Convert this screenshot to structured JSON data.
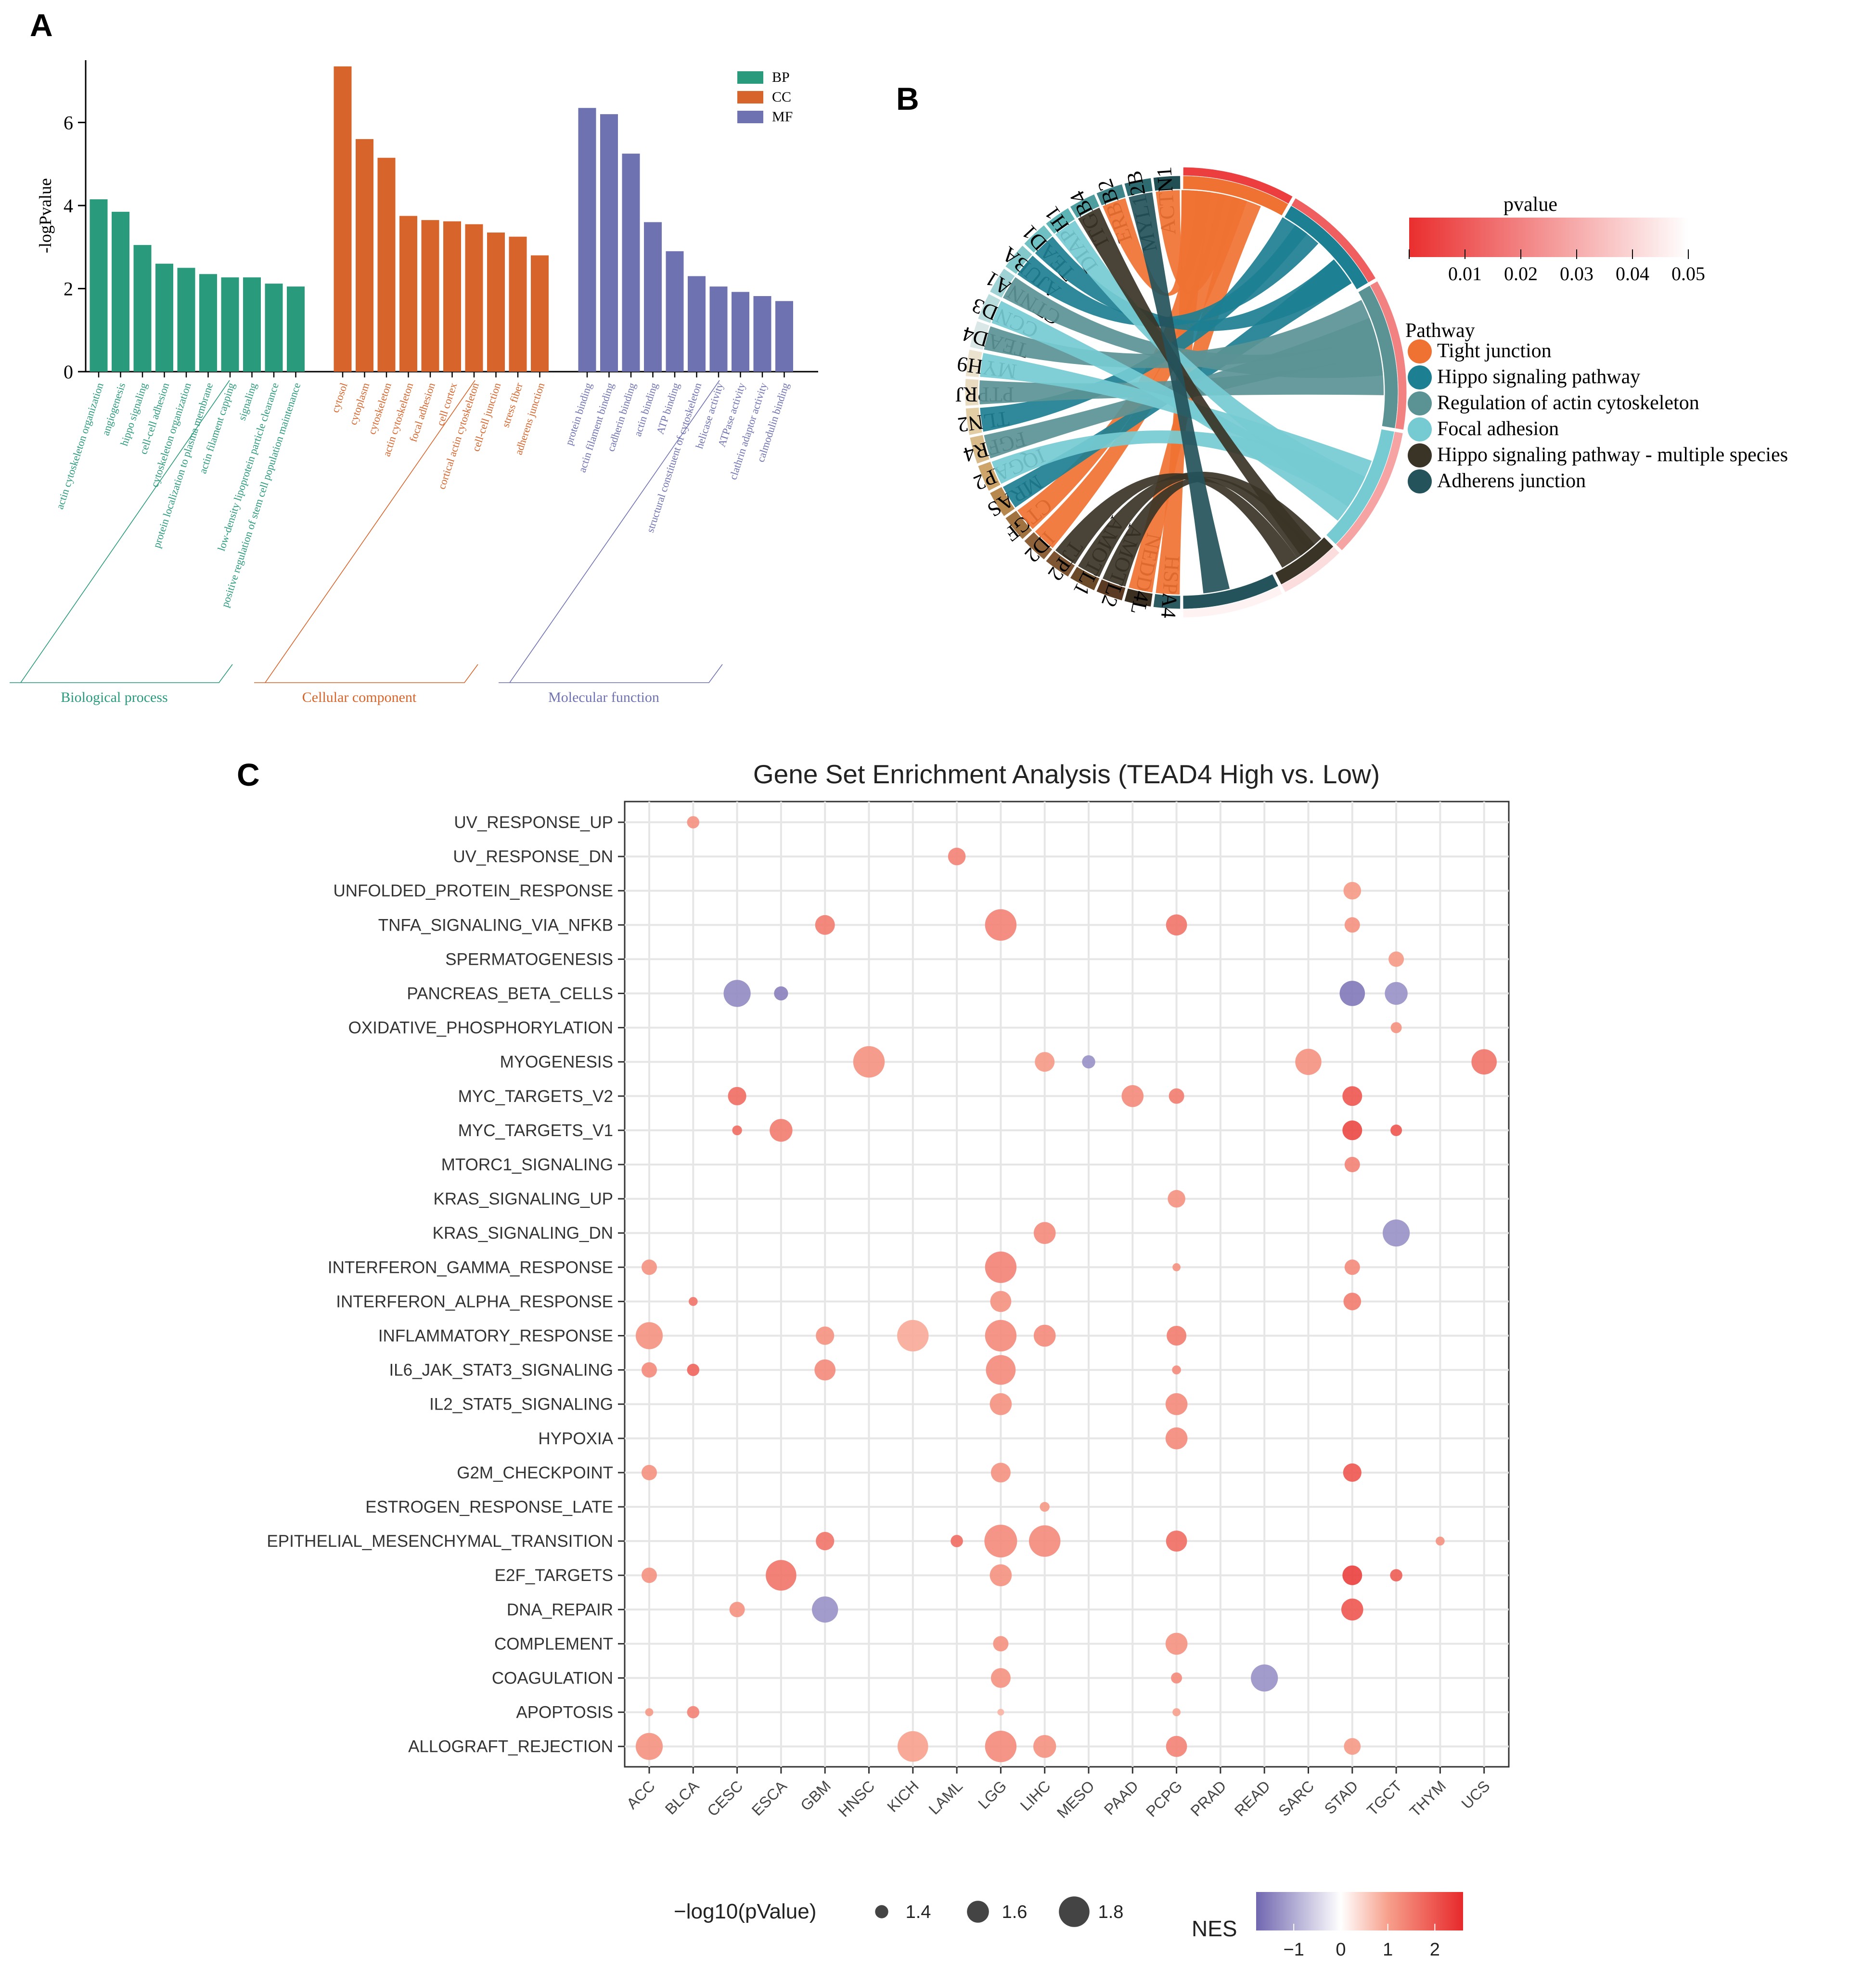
{
  "panels": {
    "a": {
      "label": "A"
    },
    "b": {
      "label": "B"
    },
    "c": {
      "label": "C"
    }
  },
  "chart_data": [
    {
      "type": "bar",
      "ylabel": "-logPvalue",
      "ylim": [
        0,
        7.5
      ],
      "yticks": [
        0,
        2,
        4,
        6
      ],
      "legend": {
        "placement": "top-right",
        "entries": [
          "BP",
          "CC",
          "MF"
        ]
      },
      "colors": {
        "BP": "#2a9a7c",
        "CC": "#d7652b",
        "MF": "#6f72b0"
      },
      "groups": [
        {
          "key": "BP",
          "name": "Biological process",
          "categories": [
            "actin cytoskeleton organization",
            "angiogenesis",
            "hippo signaling",
            "cell-cell adhesion",
            "cytoskeleton organization",
            "protein localization to plasma membrane",
            "actin filament capping",
            "signaling",
            "low-density lipoprotein particle clearance",
            "positive regulation of stem cell population maintenance"
          ],
          "values": [
            4.15,
            3.85,
            3.05,
            2.6,
            2.5,
            2.35,
            2.27,
            2.27,
            2.12,
            2.05
          ]
        },
        {
          "key": "CC",
          "name": "Cellular component",
          "categories": [
            "cytosol",
            "cytoplasm",
            "cytoskeleton",
            "actin cytoskeleton",
            "focal adhesion",
            "cell cortex",
            "cortical actin cytoskeleton",
            "cell-cell junction",
            "stress fiber",
            "adherens junction"
          ],
          "values": [
            7.35,
            5.6,
            5.15,
            3.75,
            3.65,
            3.62,
            3.55,
            3.35,
            3.25,
            2.8
          ]
        },
        {
          "key": "MF",
          "name": "Molecular function",
          "categories": [
            "protein binding",
            "actin filament binding",
            "cadherin binding",
            "actin binding",
            "ATP binding",
            "structural constituent of cytoskeleton",
            "helicase activity",
            "ATPase activity",
            "clathrin adaptor activity",
            "calmodulin binding"
          ],
          "values": [
            6.35,
            6.2,
            5.25,
            3.6,
            2.9,
            2.3,
            2.05,
            1.92,
            1.82,
            1.7
          ]
        }
      ]
    },
    {
      "type": "chord",
      "genes": [
        "ACTN1",
        "MYL12B",
        "ERBB2",
        "ITGB4",
        "DIAPH1",
        "TEAD1",
        "AJUBA",
        "CTNNA1",
        "CCND3",
        "TEAD4",
        "MYH9",
        "PTPRJ",
        "TLN2",
        "FGFR4",
        "IQGAP2",
        "MRAS",
        "CTGF",
        "ID2",
        "TJP2",
        "AMOTL1",
        "AMOTL2",
        "NEDD4L",
        "HSPA4"
      ],
      "pathways": [
        {
          "name": "Tight junction",
          "color": "#f07232",
          "pvalue": 0.004
        },
        {
          "name": "Hippo signaling pathway",
          "color": "#1d7f92",
          "pvalue": 0.012
        },
        {
          "name": "Regulation of actin cytoskeleton",
          "color": "#5b9395",
          "pvalue": 0.02
        },
        {
          "name": "Focal adhesion",
          "color": "#76cbd3",
          "pvalue": 0.028
        },
        {
          "name": "Hippo signaling pathway - multiple species",
          "color": "#3a3426",
          "pvalue": 0.042
        },
        {
          "name": "Adherens junction",
          "color": "#24535b",
          "pvalue": 0.047
        }
      ],
      "legend_pathway_title": "Pathway",
      "legend_pvalue_title": "pvalue",
      "pvalue_ticks": [
        "0.01",
        "0.02",
        "0.03",
        "0.04",
        "0.05"
      ],
      "pvalue_range": [
        0,
        0.05
      ]
    },
    {
      "type": "scatter",
      "title": "Gene Set Enrichment Analysis (TEAD4 High vs. Low)",
      "x_categories": [
        "ACC",
        "BLCA",
        "CESC",
        "ESCA",
        "GBM",
        "HNSC",
        "KICH",
        "LAML",
        "LGG",
        "LIHC",
        "MESO",
        "PAAD",
        "PCPG",
        "PRAD",
        "READ",
        "SARC",
        "STAD",
        "TGCT",
        "THYM",
        "UCS"
      ],
      "y_categories": [
        "UV_RESPONSE_UP",
        "UV_RESPONSE_DN",
        "UNFOLDED_PROTEIN_RESPONSE",
        "TNFA_SIGNALING_VIA_NFKB",
        "SPERMATOGENESIS",
        "PANCREAS_BETA_CELLS",
        "OXIDATIVE_PHOSPHORYLATION",
        "MYOGENESIS",
        "MYC_TARGETS_V2",
        "MYC_TARGETS_V1",
        "MTORC1_SIGNALING",
        "KRAS_SIGNALING_UP",
        "KRAS_SIGNALING_DN",
        "INTERFERON_GAMMA_RESPONSE",
        "INTERFERON_ALPHA_RESPONSE",
        "INFLAMMATORY_RESPONSE",
        "IL6_JAK_STAT3_SIGNALING",
        "IL2_STAT5_SIGNALING",
        "HYPOXIA",
        "G2M_CHECKPOINT",
        "ESTROGEN_RESPONSE_LATE",
        "EPITHELIAL_MESENCHYMAL_TRANSITION",
        "E2F_TARGETS",
        "DNA_REPAIR",
        "COMPLEMENT",
        "COAGULATION",
        "APOPTOSIS",
        "ALLOGRAFT_REJECTION"
      ],
      "size_legend_title": "−log10(pValue)",
      "size_legend_values": [
        1.4,
        1.6,
        1.8
      ],
      "color_legend_title": "NES",
      "color_legend_ticks": [
        "−1",
        "0",
        "1",
        "2"
      ],
      "nes_range": [
        -1.8,
        2.6
      ],
      "points": [
        {
          "x": "BLCA",
          "y": "UV_RESPONSE_UP",
          "nes": 1.2,
          "logp": 1.38
        },
        {
          "x": "LAML",
          "y": "UV_RESPONSE_DN",
          "nes": 1.4,
          "logp": 1.5
        },
        {
          "x": "STAD",
          "y": "UNFOLDED_PROTEIN_RESPONSE",
          "nes": 1.1,
          "logp": 1.5
        },
        {
          "x": "GBM",
          "y": "TNFA_SIGNALING_VIA_NFKB",
          "nes": 1.5,
          "logp": 1.55
        },
        {
          "x": "LGG",
          "y": "TNFA_SIGNALING_VIA_NFKB",
          "nes": 1.4,
          "logp": 1.82
        },
        {
          "x": "PCPG",
          "y": "TNFA_SIGNALING_VIA_NFKB",
          "nes": 1.6,
          "logp": 1.58
        },
        {
          "x": "STAD",
          "y": "TNFA_SIGNALING_VIA_NFKB",
          "nes": 1.2,
          "logp": 1.45
        },
        {
          "x": "TGCT",
          "y": "SPERMATOGENESIS",
          "nes": 1.1,
          "logp": 1.45
        },
        {
          "x": "CESC",
          "y": "PANCREAS_BETA_CELLS",
          "nes": -1.4,
          "logp": 1.72
        },
        {
          "x": "ESCA",
          "y": "PANCREAS_BETA_CELLS",
          "nes": -1.5,
          "logp": 1.42
        },
        {
          "x": "STAD",
          "y": "PANCREAS_BETA_CELLS",
          "nes": -1.6,
          "logp": 1.68
        },
        {
          "x": "TGCT",
          "y": "PANCREAS_BETA_CELLS",
          "nes": -1.3,
          "logp": 1.62
        },
        {
          "x": "TGCT",
          "y": "OXIDATIVE_PHOSPHORYLATION",
          "nes": 1.2,
          "logp": 1.35
        },
        {
          "x": "HNSC",
          "y": "MYOGENESIS",
          "nes": 1.2,
          "logp": 1.82
        },
        {
          "x": "LIHC",
          "y": "MYOGENESIS",
          "nes": 1.1,
          "logp": 1.55
        },
        {
          "x": "MESO",
          "y": "MYOGENESIS",
          "nes": -1.3,
          "logp": 1.4
        },
        {
          "x": "SARC",
          "y": "MYOGENESIS",
          "nes": 1.2,
          "logp": 1.7
        },
        {
          "x": "UCS",
          "y": "MYOGENESIS",
          "nes": 1.6,
          "logp": 1.68
        },
        {
          "x": "CESC",
          "y": "MYC_TARGETS_V2",
          "nes": 1.7,
          "logp": 1.52
        },
        {
          "x": "PAAD",
          "y": "MYC_TARGETS_V2",
          "nes": 1.3,
          "logp": 1.6
        },
        {
          "x": "PCPG",
          "y": "MYC_TARGETS_V2",
          "nes": 1.5,
          "logp": 1.45
        },
        {
          "x": "STAD",
          "y": "MYC_TARGETS_V2",
          "nes": 2.0,
          "logp": 1.55
        },
        {
          "x": "CESC",
          "y": "MYC_TARGETS_V1",
          "nes": 1.7,
          "logp": 1.32
        },
        {
          "x": "ESCA",
          "y": "MYC_TARGETS_V1",
          "nes": 1.5,
          "logp": 1.62
        },
        {
          "x": "STAD",
          "y": "MYC_TARGETS_V1",
          "nes": 2.2,
          "logp": 1.55
        },
        {
          "x": "TGCT",
          "y": "MYC_TARGETS_V1",
          "nes": 2.0,
          "logp": 1.36
        },
        {
          "x": "STAD",
          "y": "MTORC1_SIGNALING",
          "nes": 1.4,
          "logp": 1.45
        },
        {
          "x": "PCPG",
          "y": "KRAS_SIGNALING_UP",
          "nes": 1.2,
          "logp": 1.5
        },
        {
          "x": "LIHC",
          "y": "KRAS_SIGNALING_DN",
          "nes": 1.3,
          "logp": 1.6
        },
        {
          "x": "TGCT",
          "y": "KRAS_SIGNALING_DN",
          "nes": -1.3,
          "logp": 1.72
        },
        {
          "x": "ACC",
          "y": "INTERFERON_GAMMA_RESPONSE",
          "nes": 1.2,
          "logp": 1.45
        },
        {
          "x": "LGG",
          "y": "INTERFERON_GAMMA_RESPONSE",
          "nes": 1.4,
          "logp": 1.82
        },
        {
          "x": "PCPG",
          "y": "INTERFERON_GAMMA_RESPONSE",
          "nes": 1.2,
          "logp": 1.28
        },
        {
          "x": "STAD",
          "y": "INTERFERON_GAMMA_RESPONSE",
          "nes": 1.3,
          "logp": 1.45
        },
        {
          "x": "BLCA",
          "y": "INTERFERON_ALPHA_RESPONSE",
          "nes": 1.6,
          "logp": 1.3
        },
        {
          "x": "LGG",
          "y": "INTERFERON_ALPHA_RESPONSE",
          "nes": 1.2,
          "logp": 1.58
        },
        {
          "x": "STAD",
          "y": "INTERFERON_ALPHA_RESPONSE",
          "nes": 1.5,
          "logp": 1.5
        },
        {
          "x": "ACC",
          "y": "INFLAMMATORY_RESPONSE",
          "nes": 1.2,
          "logp": 1.72
        },
        {
          "x": "GBM",
          "y": "INFLAMMATORY_RESPONSE",
          "nes": 1.2,
          "logp": 1.52
        },
        {
          "x": "KICH",
          "y": "INFLAMMATORY_RESPONSE",
          "nes": 0.9,
          "logp": 1.82
        },
        {
          "x": "LGG",
          "y": "INFLAMMATORY_RESPONSE",
          "nes": 1.3,
          "logp": 1.82
        },
        {
          "x": "LIHC",
          "y": "INFLAMMATORY_RESPONSE",
          "nes": 1.3,
          "logp": 1.6
        },
        {
          "x": "PCPG",
          "y": "INFLAMMATORY_RESPONSE",
          "nes": 1.5,
          "logp": 1.55
        },
        {
          "x": "ACC",
          "y": "IL6_JAK_STAT3_SIGNALING",
          "nes": 1.3,
          "logp": 1.45
        },
        {
          "x": "BLCA",
          "y": "IL6_JAK_STAT3_SIGNALING",
          "nes": 1.8,
          "logp": 1.38
        },
        {
          "x": "GBM",
          "y": "IL6_JAK_STAT3_SIGNALING",
          "nes": 1.3,
          "logp": 1.58
        },
        {
          "x": "LGG",
          "y": "IL6_JAK_STAT3_SIGNALING",
          "nes": 1.3,
          "logp": 1.78
        },
        {
          "x": "PCPG",
          "y": "IL6_JAK_STAT3_SIGNALING",
          "nes": 1.3,
          "logp": 1.3
        },
        {
          "x": "LGG",
          "y": "IL2_STAT5_SIGNALING",
          "nes": 1.2,
          "logp": 1.6
        },
        {
          "x": "PCPG",
          "y": "IL2_STAT5_SIGNALING",
          "nes": 1.3,
          "logp": 1.6
        },
        {
          "x": "PCPG",
          "y": "HYPOXIA",
          "nes": 1.3,
          "logp": 1.6
        },
        {
          "x": "ACC",
          "y": "G2M_CHECKPOINT",
          "nes": 1.2,
          "logp": 1.45
        },
        {
          "x": "LGG",
          "y": "G2M_CHECKPOINT",
          "nes": 1.2,
          "logp": 1.55
        },
        {
          "x": "STAD",
          "y": "G2M_CHECKPOINT",
          "nes": 2.0,
          "logp": 1.52
        },
        {
          "x": "LIHC",
          "y": "ESTROGEN_RESPONSE_LATE",
          "nes": 1.1,
          "logp": 1.32
        },
        {
          "x": "GBM",
          "y": "EPITHELIAL_MESENCHYMAL_TRANSITION",
          "nes": 1.6,
          "logp": 1.52
        },
        {
          "x": "LAML",
          "y": "EPITHELIAL_MESENCHYMAL_TRANSITION",
          "nes": 1.7,
          "logp": 1.38
        },
        {
          "x": "LGG",
          "y": "EPITHELIAL_MESENCHYMAL_TRANSITION",
          "nes": 1.3,
          "logp": 1.85
        },
        {
          "x": "LIHC",
          "y": "EPITHELIAL_MESENCHYMAL_TRANSITION",
          "nes": 1.3,
          "logp": 1.82
        },
        {
          "x": "PCPG",
          "y": "EPITHELIAL_MESENCHYMAL_TRANSITION",
          "nes": 1.7,
          "logp": 1.58
        },
        {
          "x": "THYM",
          "y": "EPITHELIAL_MESENCHYMAL_TRANSITION",
          "nes": 1.2,
          "logp": 1.3
        },
        {
          "x": "ACC",
          "y": "E2F_TARGETS",
          "nes": 1.2,
          "logp": 1.45
        },
        {
          "x": "ESCA",
          "y": "E2F_TARGETS",
          "nes": 1.6,
          "logp": 1.8
        },
        {
          "x": "LGG",
          "y": "E2F_TARGETS",
          "nes": 1.2,
          "logp": 1.6
        },
        {
          "x": "STAD",
          "y": "E2F_TARGETS",
          "nes": 2.3,
          "logp": 1.55
        },
        {
          "x": "TGCT",
          "y": "E2F_TARGETS",
          "nes": 1.9,
          "logp": 1.38
        },
        {
          "x": "CESC",
          "y": "DNA_REPAIR",
          "nes": 1.2,
          "logp": 1.45
        },
        {
          "x": "GBM",
          "y": "DNA_REPAIR",
          "nes": -1.3,
          "logp": 1.7
        },
        {
          "x": "STAD",
          "y": "DNA_REPAIR",
          "nes": 2.0,
          "logp": 1.6
        },
        {
          "x": "LGG",
          "y": "COMPLEMENT",
          "nes": 1.2,
          "logp": 1.45
        },
        {
          "x": "PCPG",
          "y": "COMPLEMENT",
          "nes": 1.2,
          "logp": 1.6
        },
        {
          "x": "LGG",
          "y": "COAGULATION",
          "nes": 1.2,
          "logp": 1.55
        },
        {
          "x": "PCPG",
          "y": "COAGULATION",
          "nes": 1.3,
          "logp": 1.35
        },
        {
          "x": "READ",
          "y": "COAGULATION",
          "nes": -1.3,
          "logp": 1.72
        },
        {
          "x": "ACC",
          "y": "APOPTOSIS",
          "nes": 1.1,
          "logp": 1.28
        },
        {
          "x": "BLCA",
          "y": "APOPTOSIS",
          "nes": 1.4,
          "logp": 1.38
        },
        {
          "x": "LGG",
          "y": "APOPTOSIS",
          "nes": 0.8,
          "logp": 1.25
        },
        {
          "x": "PCPG",
          "y": "APOPTOSIS",
          "nes": 1.0,
          "logp": 1.28
        },
        {
          "x": "ACC",
          "y": "ALLOGRAFT_REJECTION",
          "nes": 1.2,
          "logp": 1.72
        },
        {
          "x": "KICH",
          "y": "ALLOGRAFT_REJECTION",
          "nes": 1.0,
          "logp": 1.8
        },
        {
          "x": "LGG",
          "y": "ALLOGRAFT_REJECTION",
          "nes": 1.3,
          "logp": 1.82
        },
        {
          "x": "LIHC",
          "y": "ALLOGRAFT_REJECTION",
          "nes": 1.2,
          "logp": 1.62
        },
        {
          "x": "PCPG",
          "y": "ALLOGRAFT_REJECTION",
          "nes": 1.4,
          "logp": 1.58
        },
        {
          "x": "STAD",
          "y": "ALLOGRAFT_REJECTION",
          "nes": 1.1,
          "logp": 1.48
        }
      ]
    }
  ]
}
